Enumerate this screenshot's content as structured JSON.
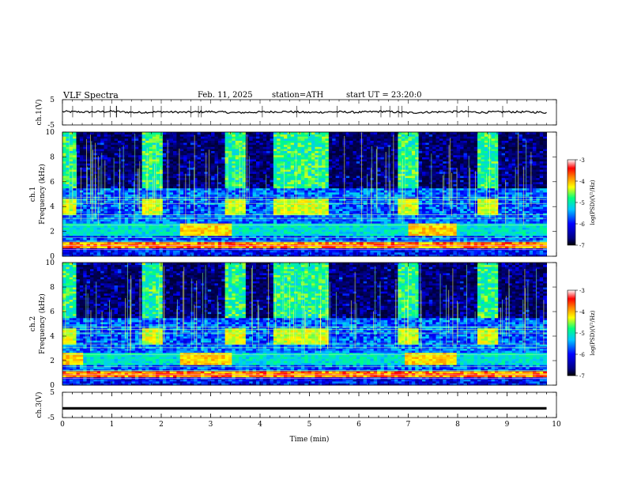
{
  "header": {
    "title": "VLF Spectra",
    "date": "Feb. 11, 2025",
    "station": "station=ATH",
    "start": "start UT = 23:20:0"
  },
  "colors": {
    "trace": "#000000",
    "colormap": [
      "#000000",
      "#000080",
      "#0000ff",
      "#00c8ff",
      "#00ff80",
      "#ffff00",
      "#ff8000",
      "#ff0000",
      "#ffffff"
    ]
  },
  "chart_data": [
    {
      "type": "line",
      "panel": "ch1-waveform",
      "ylabel": "ch.1(V)",
      "ylim": [
        -5,
        5
      ],
      "yticks": [
        "5",
        "-5"
      ],
      "x": [
        0,
        0.5,
        1,
        1.5,
        2,
        2.5,
        3,
        3.5,
        4,
        4.5,
        5,
        5.5,
        6,
        6.5,
        7,
        7.5,
        8,
        8.5,
        9,
        9.5,
        9.8
      ],
      "y": [
        0.3,
        0.1,
        0.4,
        -0.1,
        0.2,
        0.0,
        0.3,
        -0.2,
        0.1,
        0.3,
        -0.1,
        0.2,
        0.0,
        0.4,
        -0.2,
        0.1,
        0.3,
        0.0,
        0.2,
        0.1,
        -0.1
      ]
    },
    {
      "type": "heatmap",
      "panel": "ch1-spectrogram",
      "ylabel": "ch.1 Frequency (kHz)",
      "ylim": [
        0,
        10
      ],
      "yticks": [
        "0",
        "2",
        "4",
        "6",
        "8",
        "10"
      ],
      "colorbar": {
        "label": "log(PSD)(V²/Hz)",
        "range": [
          -7,
          -3
        ],
        "ticks": [
          "-3",
          "-4",
          "-5",
          "-6",
          "-7"
        ]
      },
      "bright_bursts_min": [
        [
          0,
          0.3
        ],
        [
          1.6,
          2.0
        ],
        [
          3.3,
          3.7
        ],
        [
          4.3,
          5.4
        ],
        [
          6.8,
          7.2
        ],
        [
          8.4,
          8.8
        ]
      ],
      "band_4khz_min": [
        [
          0,
          0.3
        ],
        [
          1.6,
          2.0
        ],
        [
          3.3,
          3.7
        ],
        [
          4.3,
          5.4
        ],
        [
          6.8,
          7.2
        ],
        [
          8.4,
          8.8
        ]
      ],
      "band_2khz_min": [
        [
          2.4,
          3.4
        ],
        [
          7.0,
          8.0
        ]
      ]
    },
    {
      "type": "heatmap",
      "panel": "ch2-spectrogram",
      "ylabel": "ch.2 Frequency (kHz)",
      "ylim": [
        0,
        10
      ],
      "yticks": [
        "0",
        "2",
        "4",
        "6",
        "8",
        "10"
      ],
      "colorbar": {
        "label": "log(PSD)(V²/Hz)",
        "range": [
          -7,
          -3
        ],
        "ticks": [
          "-3",
          "-4",
          "-5",
          "-6",
          "-7"
        ]
      },
      "bright_bursts_min": [
        [
          0,
          0.3
        ],
        [
          1.6,
          2.0
        ],
        [
          3.3,
          3.7
        ],
        [
          4.3,
          5.4
        ],
        [
          6.8,
          7.2
        ],
        [
          8.4,
          8.8
        ]
      ],
      "band_4khz_min": [
        [
          0,
          0.3
        ],
        [
          1.6,
          2.0
        ],
        [
          3.3,
          3.7
        ],
        [
          4.3,
          5.4
        ],
        [
          6.8,
          7.2
        ],
        [
          8.4,
          8.8
        ]
      ],
      "band_2khz_min": [
        [
          0,
          0.4
        ],
        [
          2.4,
          3.4
        ],
        [
          6.9,
          8.0
        ]
      ]
    },
    {
      "type": "line",
      "panel": "ch3-waveform",
      "ylabel": "ch.3(V)",
      "ylim": [
        -5,
        5
      ],
      "yticks": [
        "5",
        "-5"
      ],
      "x": [
        0,
        9.8
      ],
      "y": [
        -1.5,
        -1.5
      ]
    }
  ],
  "xaxis": {
    "label": "Time (min)",
    "ticks": [
      "0",
      "1",
      "2",
      "3",
      "4",
      "5",
      "6",
      "7",
      "8",
      "9",
      "10"
    ],
    "xlim": [
      0,
      10
    ],
    "data_end_min": 9.8
  }
}
